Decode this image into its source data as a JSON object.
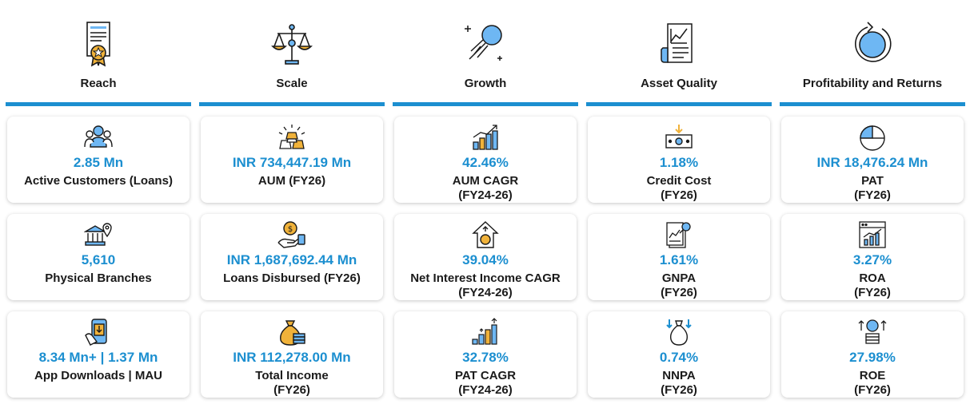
{
  "colors": {
    "accent": "#1c8fd0",
    "icon_fill": "#6eb7f3",
    "icon_stroke": "#1a1a1a",
    "gold": "#f0b23a"
  },
  "columns": [
    {
      "title": "Reach",
      "icon": "certificate-icon",
      "metrics": [
        {
          "value": "2.85 Mn",
          "label": "Active Customers (Loans)",
          "sub": "",
          "icon": "customers-group-icon"
        },
        {
          "value": "5,610",
          "label": "Physical Branches",
          "sub": "",
          "icon": "bank-location-icon"
        },
        {
          "value": "8.34 Mn+ | 1.37 Mn",
          "label": "App Downloads | MAU",
          "sub": "",
          "icon": "mobile-download-icon"
        }
      ]
    },
    {
      "title": "Scale",
      "icon": "balance-scale-icon",
      "metrics": [
        {
          "value": "INR 734,447.19 Mn",
          "label": "AUM (FY26)",
          "sub": "",
          "icon": "gold-bars-icon"
        },
        {
          "value": "INR 1,687,692.44 Mn",
          "label": "Loans Disbursed (FY26)",
          "sub": "",
          "icon": "hand-money-icon"
        },
        {
          "value": "INR 112,278.00 Mn",
          "label": "Total Income",
          "sub": "(FY26)",
          "icon": "money-bag-coins-icon"
        }
      ]
    },
    {
      "title": "Growth",
      "icon": "shooting-star-icon",
      "metrics": [
        {
          "value": "42.46%",
          "label": "AUM CAGR",
          "sub": "(FY24-26)",
          "icon": "growth-bars-icon"
        },
        {
          "value": "39.04%",
          "label": "Net Interest Income CAGR",
          "sub": "(FY24-26)",
          "icon": "house-coin-icon"
        },
        {
          "value": "32.78%",
          "label": "PAT CAGR",
          "sub": "(FY24-26)",
          "icon": "coin-stacks-icon"
        }
      ]
    },
    {
      "title": "Asset Quality",
      "icon": "report-chart-icon",
      "metrics": [
        {
          "value": "1.18%",
          "label": "Credit Cost",
          "sub": "(FY26)",
          "icon": "banknote-down-icon"
        },
        {
          "value": "1.61%",
          "label": "GNPA",
          "sub": "(FY26)",
          "icon": "report-search-icon"
        },
        {
          "value": "0.74%",
          "label": "NNPA",
          "sub": "(FY26)",
          "icon": "money-bag-arrows-icon"
        }
      ]
    },
    {
      "title": "Profitability and Returns",
      "icon": "refresh-cycle-icon",
      "metrics": [
        {
          "value": "INR 18,476.24 Mn",
          "label": "PAT",
          "sub": "(FY26)",
          "icon": "pie-chart-icon"
        },
        {
          "value": "3.27%",
          "label": "ROA",
          "sub": "(FY26)",
          "icon": "browser-chart-icon"
        },
        {
          "value": "27.98%",
          "label": "ROE",
          "sub": "(FY26)",
          "icon": "coin-arrows-icon"
        }
      ]
    }
  ]
}
